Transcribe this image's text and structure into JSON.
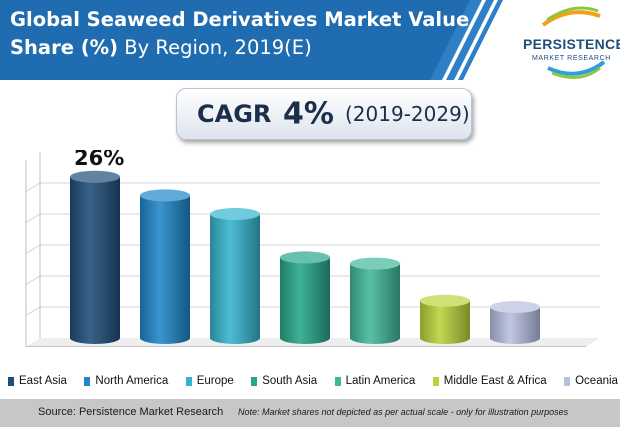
{
  "header": {
    "title_line1": "Global Seaweed Derivatives Market Value",
    "title_line2_bold": "Share (%)",
    "title_line2_rest": " By Region, 2019(E)"
  },
  "logo": {
    "name": "PERSISTENCE",
    "tagline": "MARKET RESEARCH"
  },
  "cagr": {
    "label": "CAGR",
    "value": "4%",
    "period": "(2019-2029)"
  },
  "colors": {
    "banner": "#1f6cb0",
    "banner_stripe": "#2f7fc6",
    "east_asia": "#1f4e79",
    "north_america": "#1f86c8",
    "europe": "#35b4cf",
    "south_asia": "#27a68b",
    "latin_america": "#41b79a",
    "middle_east_africa": "#b9d33b",
    "oceania": "#b7bfe0"
  },
  "chart_data": {
    "type": "bar",
    "categories": [
      "East Asia",
      "North America",
      "Europe",
      "South Asia",
      "Latin America",
      "Middle East & Africa",
      "Oceania"
    ],
    "values": [
      26,
      23,
      20,
      13,
      12,
      6,
      5
    ],
    "data_labels": [
      "26%",
      "",
      "",
      "",
      "",
      "",
      ""
    ],
    "ylim": [
      0,
      30
    ],
    "grid": true,
    "legend_position": "bottom",
    "bar_style": "3d-cylinder"
  },
  "source": "Source: Persistence Market Research",
  "note": "Note: Market shares not depicted as per actual scale - only for illustration purposes"
}
